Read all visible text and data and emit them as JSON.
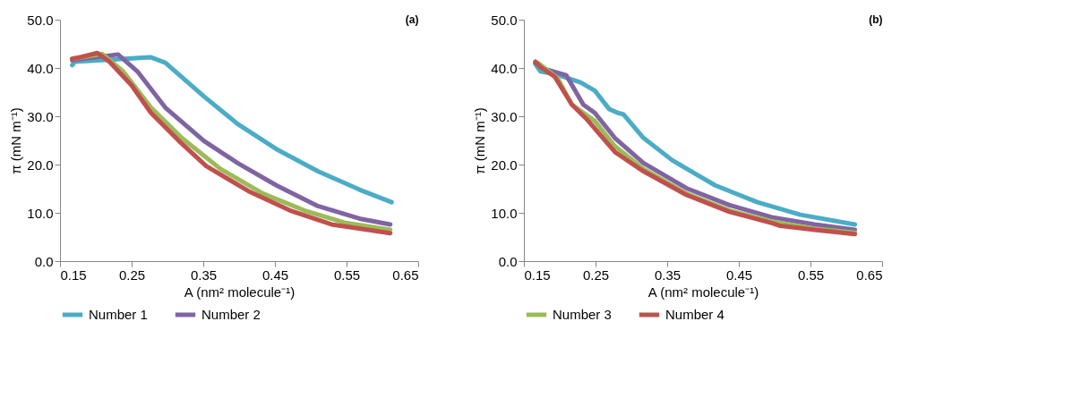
{
  "chart_data": [
    {
      "type": "line",
      "title": "(a)",
      "xlabel": "A (nm² molecule⁻¹)",
      "ylabel": "π (mN m⁻¹)",
      "xlim": [
        0.15,
        0.65
      ],
      "xticks": [
        0.15,
        0.25,
        0.35,
        0.45,
        0.55,
        0.65
      ],
      "ylim": [
        0,
        50
      ],
      "yticks": [
        {
          "value": 0,
          "label": "0.0"
        },
        {
          "value": 10,
          "label": "10.0"
        },
        {
          "value": 20,
          "label": "20.0"
        },
        {
          "value": 30,
          "label": "30.0"
        },
        {
          "value": 40,
          "label": "40.0"
        },
        {
          "value": 50,
          "label": "50.0"
        }
      ],
      "grid": false,
      "legend": "bottom",
      "marker": "none",
      "line_style": "solid",
      "series": [
        {
          "name": "Number 1",
          "color": "#4bacc6",
          "x": [
            0.167,
            0.171,
            0.277,
            0.297,
            0.351,
            0.398,
            0.452,
            0.51,
            0.568,
            0.613
          ],
          "values": [
            40.6,
            41.3,
            42.2,
            41.1,
            34.1,
            28.4,
            23.2,
            18.6,
            14.8,
            12.2
          ]
        },
        {
          "name": "Number 2",
          "color": "#8064a2",
          "x": [
            0.167,
            0.231,
            0.258,
            0.297,
            0.351,
            0.398,
            0.452,
            0.51,
            0.568,
            0.611
          ],
          "values": [
            41.6,
            42.8,
            39.3,
            31.8,
            24.9,
            20.3,
            15.7,
            11.4,
            8.8,
            7.6
          ]
        },
        {
          "color": "#9bbb59",
          "x": [
            0.167,
            0.209,
            0.238,
            0.277,
            0.32,
            0.374,
            0.433,
            0.491,
            0.549,
            0.611
          ],
          "values": [
            41.9,
            42.9,
            39.3,
            31.8,
            25.5,
            19.1,
            14.0,
            10.5,
            7.9,
            6.5
          ]
        },
        {
          "color": "#c0504d",
          "x": [
            0.167,
            0.18,
            0.202,
            0.219,
            0.25,
            0.277,
            0.316,
            0.354,
            0.413,
            0.471,
            0.529,
            0.611
          ],
          "values": [
            41.9,
            42.3,
            43.1,
            41.3,
            36.4,
            30.7,
            24.9,
            19.7,
            14.5,
            10.5,
            7.6,
            5.8
          ]
        }
      ]
    },
    {
      "type": "line",
      "title": "(b)",
      "xlabel": "A (nm² molecule⁻¹)",
      "ylabel": "π (mN m⁻¹)",
      "xlim": [
        0.15,
        0.65
      ],
      "xticks": [
        0.15,
        0.25,
        0.35,
        0.45,
        0.55,
        0.65
      ],
      "ylim": [
        0,
        50
      ],
      "yticks": [
        {
          "value": 0,
          "label": "0.0"
        },
        {
          "value": 10,
          "label": "10.0"
        },
        {
          "value": 20,
          "label": "20.0"
        },
        {
          "value": 30,
          "label": "30.0"
        },
        {
          "value": 40,
          "label": "40.0"
        },
        {
          "value": 50,
          "label": "50.0"
        }
      ],
      "grid": false,
      "legend": "bottom",
      "marker": "none",
      "line_style": "solid",
      "series": [
        {
          "color": "#4bacc6",
          "x": [
            0.166,
            0.173,
            0.197,
            0.229,
            0.249,
            0.269,
            0.281,
            0.289,
            0.317,
            0.357,
            0.417,
            0.476,
            0.536,
            0.612
          ],
          "values": [
            40.8,
            39.3,
            38.6,
            37.0,
            35.3,
            31.5,
            30.7,
            30.4,
            25.5,
            20.9,
            15.7,
            12.2,
            9.6,
            7.6
          ]
        },
        {
          "color": "#8064a2",
          "x": [
            0.166,
            0.177,
            0.209,
            0.233,
            0.249,
            0.277,
            0.317,
            0.377,
            0.437,
            0.496,
            0.556,
            0.612
          ],
          "values": [
            41.1,
            39.9,
            38.5,
            32.4,
            30.7,
            25.5,
            20.3,
            15.1,
            11.6,
            9.1,
            7.6,
            6.5
          ]
        },
        {
          "name": "Number 3",
          "color": "#9bbb59",
          "x": [
            0.169,
            0.197,
            0.217,
            0.249,
            0.277,
            0.317,
            0.377,
            0.437,
            0.496,
            0.556,
            0.612
          ],
          "values": [
            41.1,
            37.9,
            32.4,
            29.0,
            23.8,
            19.1,
            14.0,
            10.5,
            8.2,
            6.7,
            5.9
          ]
        },
        {
          "name": "Number 4",
          "color": "#c0504d",
          "x": [
            0.166,
            0.173,
            0.193,
            0.217,
            0.237,
            0.277,
            0.317,
            0.377,
            0.437,
            0.496,
            0.508,
            0.556,
            0.612
          ],
          "values": [
            41.3,
            40.2,
            38.2,
            32.4,
            29.5,
            22.6,
            18.6,
            13.7,
            10.2,
            7.9,
            7.3,
            6.5,
            5.6
          ]
        }
      ]
    }
  ]
}
